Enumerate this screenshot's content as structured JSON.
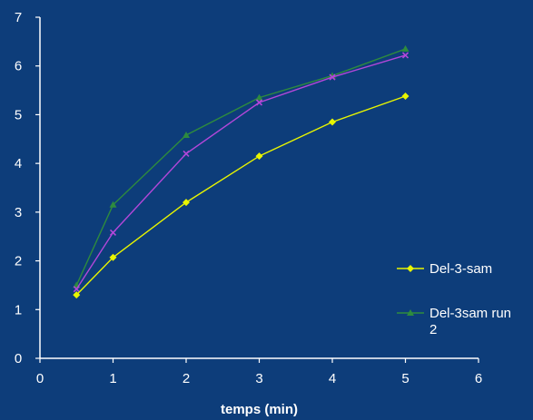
{
  "chart_data": {
    "type": "line",
    "xlabel": "temps (min)",
    "ylabel": "",
    "xlim": [
      0,
      6
    ],
    "ylim": [
      0,
      7
    ],
    "x_ticks": [
      "0",
      "1",
      "2",
      "3",
      "4",
      "5",
      "6"
    ],
    "y_ticks": [
      "0",
      "1",
      "2",
      "3",
      "4",
      "5",
      "6",
      "7"
    ],
    "grid": false,
    "legend_position": "right",
    "series": [
      {
        "name": "Del-3-sam",
        "color": "#e8f500",
        "marker": "diamond",
        "x": [
          0.5,
          1,
          2,
          3,
          4,
          5
        ],
        "y": [
          1.3,
          2.07,
          3.2,
          4.15,
          4.85,
          5.38
        ]
      },
      {
        "name": "Del-3sam run 2",
        "color": "#2e8b3e",
        "marker": "triangle",
        "x": [
          0.5,
          1,
          2,
          3,
          4,
          5
        ],
        "y": [
          1.5,
          3.15,
          4.58,
          5.35,
          5.8,
          6.35
        ]
      },
      {
        "name": "",
        "color": "#b347d9",
        "marker": "cross",
        "x": [
          0.5,
          1,
          2,
          3,
          4,
          5
        ],
        "y": [
          1.42,
          2.58,
          4.2,
          5.25,
          5.77,
          6.22
        ]
      }
    ]
  }
}
